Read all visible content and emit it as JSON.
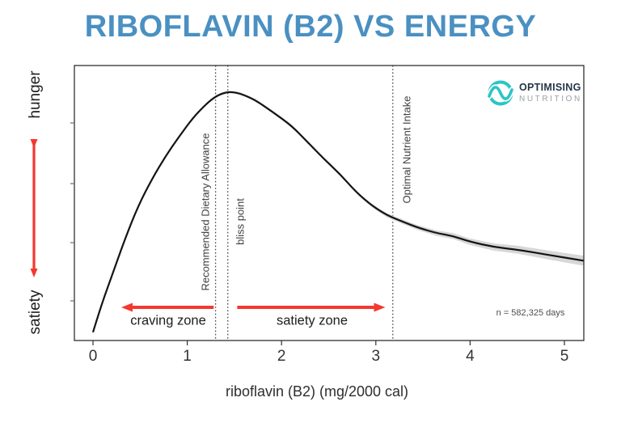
{
  "title": "RIBOFLAVIN (B2) VS ENERGY",
  "logo": {
    "name": "OPTIMISING",
    "subname": "NUTRITION"
  },
  "y_axis": {
    "top_label": "hunger",
    "bottom_label": "satiety"
  },
  "x_axis": {
    "label": "riboflavin (B2) (mg/2000 cal)",
    "ticks": [
      "0",
      "1",
      "2",
      "3",
      "4",
      "5"
    ]
  },
  "annotations": {
    "rda_label": "Recommended Dietary Allowance",
    "bliss_label": "bliss point",
    "oni_label": "Optimal Nutrient Intake",
    "craving_zone_label": "craving zone",
    "satiety_zone_label": "satiety zone",
    "sample_size": "n = 582,325 days"
  },
  "colors": {
    "title_blue": "#4a90c2",
    "accent_red": "#f4382f",
    "logo_teal": "#2cc5c3",
    "logo_navy": "#253649",
    "logo_gray": "#9aa0a7",
    "curve_black": "#141414",
    "band_gray": "#d7d7d7",
    "ref_line": "#474747"
  },
  "chart_data": {
    "type": "line",
    "title": "RIBOFLAVIN (B2) VS ENERGY",
    "xlabel": "riboflavin (B2) (mg/2000 cal)",
    "ylabel": "hunger (top) to satiety (bottom), unlabeled scale",
    "xlim": [
      0,
      5.2
    ],
    "ylim": [
      0,
      1
    ],
    "grid": false,
    "legend_position": "none",
    "sample_size_days": 582325,
    "series": [
      {
        "name": "hunger response (smoothed, with confidence band)",
        "points": [
          [
            0.0,
            0.03
          ],
          [
            0.08,
            0.12
          ],
          [
            0.2,
            0.235
          ],
          [
            0.34,
            0.37
          ],
          [
            0.48,
            0.49
          ],
          [
            0.63,
            0.59
          ],
          [
            0.77,
            0.67
          ],
          [
            0.91,
            0.74
          ],
          [
            1.06,
            0.81
          ],
          [
            1.2,
            0.86
          ],
          [
            1.31,
            0.89
          ],
          [
            1.43,
            0.905
          ],
          [
            1.55,
            0.9
          ],
          [
            1.72,
            0.875
          ],
          [
            1.91,
            0.83
          ],
          [
            2.11,
            0.78
          ],
          [
            2.28,
            0.72
          ],
          [
            2.45,
            0.66
          ],
          [
            2.62,
            0.605
          ],
          [
            2.79,
            0.54
          ],
          [
            2.96,
            0.49
          ],
          [
            3.12,
            0.455
          ],
          [
            3.3,
            0.43
          ],
          [
            3.45,
            0.41
          ],
          [
            3.65,
            0.39
          ],
          [
            3.82,
            0.38
          ],
          [
            3.99,
            0.36
          ],
          [
            4.25,
            0.34
          ],
          [
            4.51,
            0.33
          ],
          [
            4.85,
            0.31
          ],
          [
            5.21,
            0.29
          ]
        ]
      }
    ],
    "reference_lines": [
      {
        "name": "recommended-dietary-allowance",
        "x": 1.3
      },
      {
        "name": "bliss-point",
        "x": 1.43
      },
      {
        "name": "optimal-nutrient-intake",
        "x": 3.18
      }
    ],
    "zones": [
      {
        "name": "craving-zone",
        "from_x": 0.3,
        "to_x": 1.28,
        "arrow_direction": "left"
      },
      {
        "name": "satiety-zone",
        "from_x": 1.53,
        "to_x": 3.1,
        "arrow_direction": "right"
      }
    ]
  }
}
